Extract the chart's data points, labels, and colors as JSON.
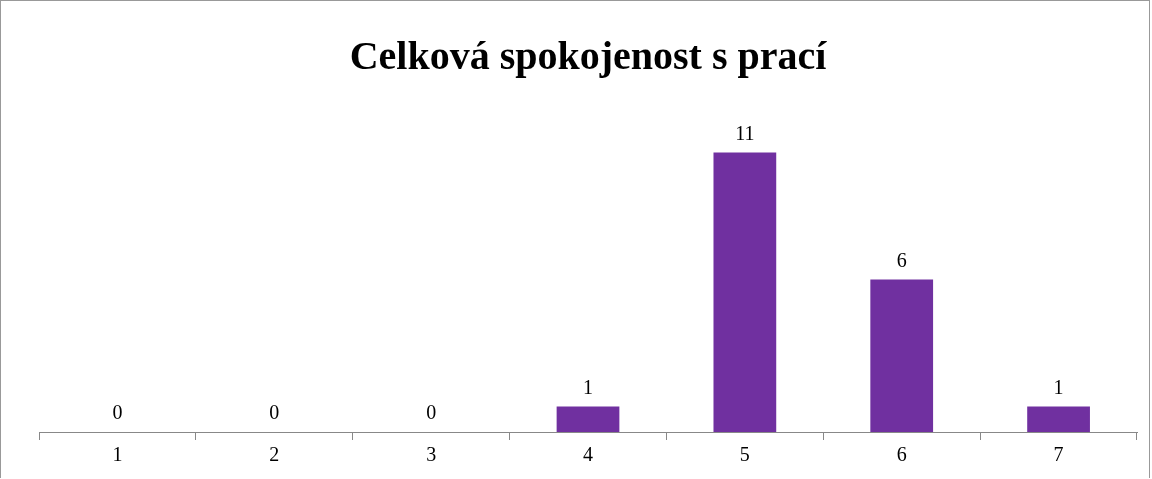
{
  "chart_data": {
    "type": "bar",
    "title": "Celková spokojenost s prací",
    "categories": [
      "1",
      "2",
      "3",
      "4",
      "5",
      "6",
      "7"
    ],
    "values": [
      0,
      0,
      0,
      1,
      11,
      6,
      1
    ],
    "color": "#7030a0",
    "data_labels": true,
    "grid": false,
    "legend": false
  }
}
